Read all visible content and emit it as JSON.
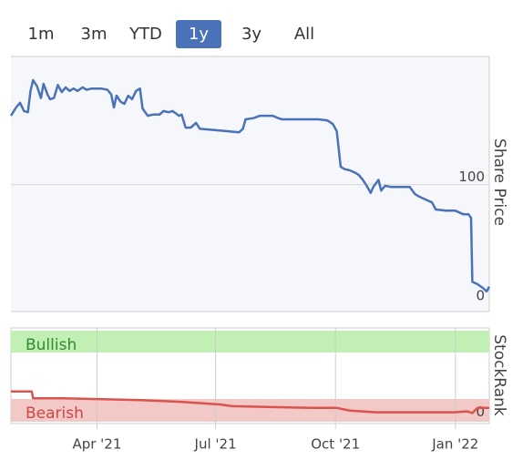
{
  "range_buttons": {
    "labels": [
      "1m",
      "3m",
      "YTD",
      "1y",
      "3y",
      "All"
    ],
    "selected": "1y"
  },
  "chart_data": [
    {
      "type": "line",
      "y_label": "Share Price",
      "color": "#4a72b8",
      "x": [
        0,
        4,
        7,
        10,
        13,
        15,
        17,
        20,
        23,
        25,
        28,
        30,
        33,
        36,
        39,
        42,
        45,
        48,
        51,
        55,
        58,
        62,
        69,
        74,
        77,
        79,
        81,
        84,
        87,
        90,
        93,
        96,
        99,
        101,
        105,
        109,
        114,
        117,
        121,
        124,
        129,
        131,
        134,
        138,
        142,
        145,
        156,
        166,
        175,
        178,
        180,
        186,
        191,
        201,
        205,
        208,
        215,
        226,
        236,
        243,
        247,
        250,
        253,
        256,
        260,
        264,
        267,
        270,
        273,
        276,
        278,
        282,
        284,
        287,
        292,
        303,
        306,
        310,
        313,
        319,
        323,
        326,
        334,
        341,
        347,
        351,
        353,
        354,
        358,
        362,
        365,
        367
      ],
      "values": [
        158,
        165,
        169,
        162,
        161,
        179,
        188,
        183,
        173,
        185,
        176,
        172,
        173,
        184,
        178,
        182,
        179,
        181,
        179,
        182,
        180,
        181,
        181,
        180,
        176,
        165,
        175,
        170,
        168,
        175,
        172,
        179,
        181,
        164,
        158,
        159,
        159,
        162,
        161,
        162,
        158,
        159,
        148,
        148,
        152,
        147,
        146,
        145,
        144,
        147,
        155,
        156,
        158,
        158,
        156,
        155,
        155,
        155,
        155,
        154,
        151,
        145,
        115,
        113,
        112,
        110,
        108,
        104,
        99,
        93,
        98,
        104,
        95,
        99,
        98,
        98,
        98,
        92,
        90,
        87,
        85,
        79,
        78,
        78,
        75,
        75,
        72,
        18,
        16,
        13,
        10,
        14
      ],
      "xlim": [
        0,
        367
      ],
      "ylim": [
        -7,
        208
      ],
      "yticks": [
        0,
        100
      ],
      "grid": true
    },
    {
      "type": "line",
      "y_label": "StockRank",
      "color": "#d9534f",
      "bands": [
        "Bullish",
        "Bearish"
      ],
      "x": [
        0,
        16,
        17,
        40,
        70,
        100,
        130,
        160,
        170,
        200,
        230,
        250,
        260,
        280,
        300,
        340,
        350,
        354,
        358,
        367
      ],
      "values": [
        27,
        27,
        19,
        19,
        18,
        17,
        15,
        12,
        10,
        9,
        8,
        8,
        5,
        3,
        3,
        3,
        4,
        2,
        8,
        8
      ],
      "xlim": [
        0,
        367
      ],
      "ylim": [
        -10,
        100
      ],
      "yticks": [
        0
      ],
      "xticks": [
        {
          "value": 66,
          "label": "Apr '21"
        },
        {
          "value": 157,
          "label": "Jul '21"
        },
        {
          "value": 249,
          "label": "Oct '21"
        },
        {
          "value": 341,
          "label": "Jan '22"
        }
      ],
      "grid": true
    }
  ]
}
